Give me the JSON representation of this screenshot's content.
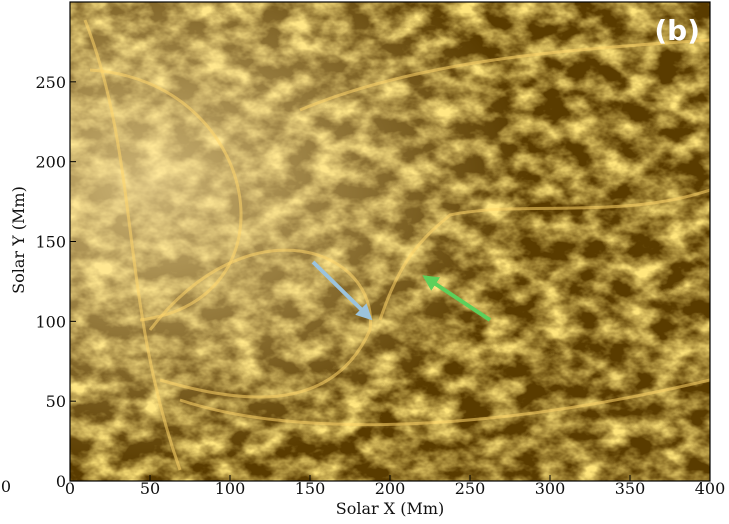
{
  "chart_data": {
    "type": "image",
    "panel_label": "(b)",
    "x_label": "Solar X (Mm)",
    "y_label": "Solar Y (Mm)",
    "xlim": [
      0,
      400
    ],
    "ylim": [
      0,
      300
    ],
    "xticks": [
      0,
      50,
      100,
      150,
      200,
      250,
      300,
      350,
      400
    ],
    "yticks": [
      0,
      50,
      100,
      150,
      200,
      250
    ],
    "cropped_label": "0"
  }
}
